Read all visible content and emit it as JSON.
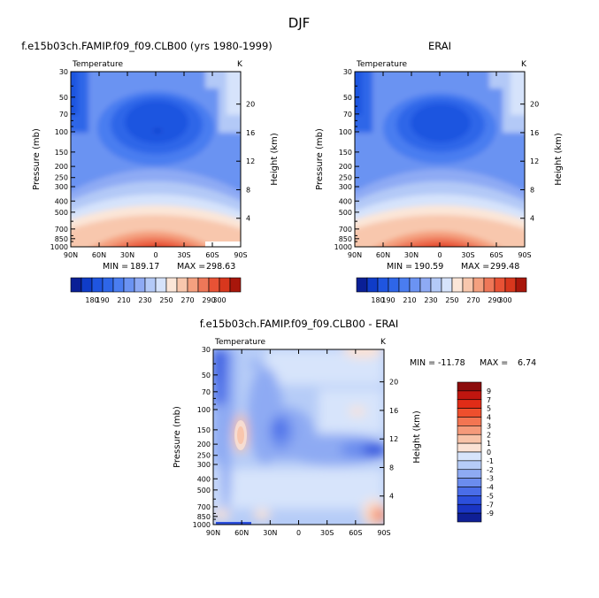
{
  "main_title": "DJF",
  "chart_data": [
    {
      "type": "heatmap",
      "title": "f.e15b03ch.FAMIP.f09_f09.CLB00 (yrs 1980-1999)",
      "variable": "Temperature",
      "units": "K",
      "ylabel": "Pressure (mb)",
      "ylabel_right": "Height (km)",
      "x_ticks": [
        "90N",
        "60N",
        "30N",
        "0",
        "30S",
        "60S",
        "90S"
      ],
      "y_ticks": [
        "30",
        "50",
        "70",
        "100",
        "150",
        "200",
        "250",
        "300",
        "400",
        "500",
        "700",
        "850",
        "1000"
      ],
      "y_right_ticks": [
        "4",
        "8",
        "12",
        "16",
        "20"
      ],
      "stats": {
        "min_label": "MIN =",
        "min": "189.17",
        "max_label": "MAX =",
        "max": "298.63"
      },
      "colorbar_labels": [
        "180",
        "190",
        "210",
        "230",
        "250",
        "270",
        "290",
        "300"
      ]
    },
    {
      "type": "heatmap",
      "title": "ERAI",
      "variable": "Temperature",
      "units": "K",
      "ylabel": "Pressure (mb)",
      "ylabel_right": "Height (km)",
      "x_ticks": [
        "90N",
        "60N",
        "30N",
        "0",
        "30S",
        "60S",
        "90S"
      ],
      "y_ticks": [
        "30",
        "50",
        "70",
        "100",
        "150",
        "200",
        "250",
        "300",
        "400",
        "500",
        "700",
        "850",
        "1000"
      ],
      "y_right_ticks": [
        "4",
        "8",
        "12",
        "16",
        "20"
      ],
      "stats": {
        "min_label": "MIN =",
        "min": "190.59",
        "max_label": "MAX =",
        "max": "299.48"
      }
    },
    {
      "type": "heatmap",
      "title": "f.e15b03ch.FAMIP.f09_f09.CLB00 - ERAI",
      "variable": "Temperature",
      "units": "K",
      "ylabel": "Pressure (mb)",
      "ylabel_right": "Height (km)",
      "x_ticks": [
        "90N",
        "60N",
        "30N",
        "0",
        "30S",
        "60S",
        "90S"
      ],
      "y_ticks": [
        "30",
        "50",
        "70",
        "100",
        "150",
        "200",
        "250",
        "300",
        "400",
        "500",
        "700",
        "850",
        "1000"
      ],
      "y_right_ticks": [
        "4",
        "8",
        "12",
        "16",
        "20"
      ],
      "stats": {
        "min_label": "MIN =",
        "min": "-11.78",
        "max_label": "MAX =",
        "max": "6.74"
      },
      "colorbar_labels": [
        "9",
        "7",
        "5",
        "4",
        "3",
        "2",
        "1",
        "0",
        "-1",
        "-2",
        "-3",
        "-4",
        "-5",
        "-7",
        "-9"
      ]
    }
  ],
  "colors": {
    "abs_scale": [
      "#0a1f96",
      "#0f3cc8",
      "#1f55e0",
      "#2e66e8",
      "#4a7df0",
      "#6b93f2",
      "#8eaaf4",
      "#b3c9f7",
      "#d6e3fb",
      "#fbe6d8",
      "#f8c7ad",
      "#f4a07f",
      "#ee7758",
      "#e85235",
      "#d8371d",
      "#a8160b"
    ],
    "diff_scale": [
      "#8c0b0b",
      "#c0160f",
      "#e02c17",
      "#ee4f2d",
      "#f37552",
      "#f59a7a",
      "#f8c3a8",
      "#fbe2d4",
      "#d7e4fb",
      "#b6ccf7",
      "#8eaaf3",
      "#6b8cee",
      "#4a6de8",
      "#2c4fdc",
      "#1a35c4",
      "#0f1f96"
    ]
  }
}
